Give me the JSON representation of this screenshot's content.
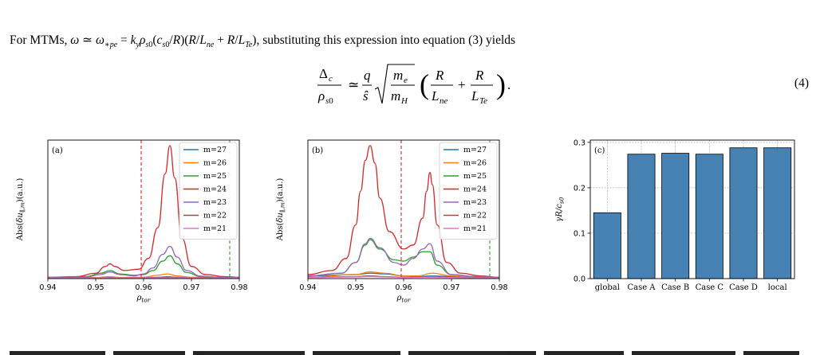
{
  "paragraph": {
    "lead": "For MTMs,",
    "formula": "ω ≃ ω*pe = k_y ρ_s0 (c_s0/R)(R/L_ne + R/L_Te)",
    "trail": ", substituting this expression into equation (3) yields"
  },
  "equation": {
    "number": "(4)"
  },
  "figure": {
    "panel_tags": [
      "(a)",
      "(b)",
      "(c)"
    ]
  },
  "chart_data": [
    {
      "panel": "(a)",
      "type": "line",
      "xlabel": "ρ_tor",
      "ylabel": "Abs(δu_∥,m)(a.u.)",
      "xlim": [
        0.94,
        0.98
      ],
      "xticks": [
        "0.94",
        "0.95",
        "0.96",
        "0.97",
        "0.98"
      ],
      "ylim": [
        0,
        1
      ],
      "yticks": [],
      "legend_position": "upper right",
      "grid": false,
      "vlines": [
        {
          "x": 0.9595,
          "color": "#d62728",
          "style": "dashed"
        },
        {
          "x": 0.978,
          "color": "#2ca02c",
          "style": "dashed"
        }
      ],
      "series": [
        {
          "name": "m=27",
          "color": "#1f77b4",
          "x": [
            0.94,
            0.95,
            0.953,
            0.955,
            0.96,
            0.963,
            0.965,
            0.967,
            0.97,
            0.975,
            0.98
          ],
          "y": [
            0.005,
            0.006,
            0.008,
            0.007,
            0.007,
            0.01,
            0.014,
            0.01,
            0.007,
            0.006,
            0.005
          ]
        },
        {
          "name": "m=26",
          "color": "#ff7f0e",
          "x": [
            0.94,
            0.95,
            0.953,
            0.955,
            0.96,
            0.963,
            0.965,
            0.967,
            0.97,
            0.975,
            0.98
          ],
          "y": [
            0.005,
            0.008,
            0.015,
            0.009,
            0.01,
            0.025,
            0.035,
            0.02,
            0.01,
            0.007,
            0.005
          ]
        },
        {
          "name": "m=25",
          "color": "#2ca02c",
          "x": [
            0.94,
            0.948,
            0.951,
            0.953,
            0.955,
            0.958,
            0.96,
            0.962,
            0.964,
            0.9655,
            0.967,
            0.969,
            0.972,
            0.976,
            0.98
          ],
          "y": [
            0.008,
            0.015,
            0.04,
            0.06,
            0.035,
            0.025,
            0.03,
            0.06,
            0.13,
            0.17,
            0.11,
            0.045,
            0.015,
            0.01,
            0.008
          ]
        },
        {
          "name": "m=24",
          "color": "#d62728",
          "x": [
            0.94,
            0.946,
            0.95,
            0.952,
            0.953,
            0.954,
            0.956,
            0.959,
            0.961,
            0.963,
            0.9645,
            0.9655,
            0.9665,
            0.968,
            0.97,
            0.973,
            0.977,
            0.98
          ],
          "y": [
            0.01,
            0.015,
            0.04,
            0.09,
            0.11,
            0.09,
            0.06,
            0.07,
            0.15,
            0.38,
            0.78,
            0.99,
            0.75,
            0.3,
            0.09,
            0.03,
            0.015,
            0.01
          ]
        },
        {
          "name": "m=23",
          "color": "#9467bd",
          "x": [
            0.94,
            0.948,
            0.951,
            0.953,
            0.955,
            0.958,
            0.96,
            0.962,
            0.964,
            0.9655,
            0.967,
            0.969,
            0.972,
            0.976,
            0.98
          ],
          "y": [
            0.008,
            0.012,
            0.03,
            0.05,
            0.03,
            0.02,
            0.035,
            0.08,
            0.18,
            0.24,
            0.16,
            0.06,
            0.018,
            0.01,
            0.008
          ]
        },
        {
          "name": "m=22",
          "color": "#8c564b",
          "x": [
            0.94,
            0.95,
            0.955,
            0.96,
            0.965,
            0.97,
            0.975,
            0.98
          ],
          "y": [
            0.005,
            0.006,
            0.006,
            0.007,
            0.008,
            0.006,
            0.005,
            0.005
          ]
        },
        {
          "name": "m=21",
          "color": "#e377c2",
          "x": [
            0.94,
            0.95,
            0.955,
            0.96,
            0.965,
            0.97,
            0.975,
            0.98
          ],
          "y": [
            0.004,
            0.005,
            0.005,
            0.005,
            0.006,
            0.005,
            0.004,
            0.004
          ]
        }
      ]
    },
    {
      "panel": "(b)",
      "type": "line",
      "xlabel": "ρ_tor",
      "ylabel": "Abs(δu_∥,m)(a.u.)",
      "xlim": [
        0.94,
        0.98
      ],
      "xticks": [
        "0.94",
        "0.95",
        "0.96",
        "0.97",
        "0.98"
      ],
      "ylim": [
        0,
        1
      ],
      "yticks": [],
      "legend_position": "upper right",
      "grid": false,
      "vlines": [
        {
          "x": 0.9595,
          "color": "#d62728",
          "style": "dashed"
        },
        {
          "x": 0.978,
          "color": "#2ca02c",
          "style": "dashed"
        }
      ],
      "series": [
        {
          "name": "m=27",
          "color": "#1f77b4",
          "x": [
            0.94,
            0.95,
            0.953,
            0.956,
            0.96,
            0.963,
            0.966,
            0.97,
            0.975,
            0.98
          ],
          "y": [
            0.02,
            0.03,
            0.04,
            0.035,
            0.02,
            0.015,
            0.02,
            0.015,
            0.01,
            0.008
          ]
        },
        {
          "name": "m=26",
          "color": "#ff7f0e",
          "x": [
            0.94,
            0.95,
            0.953,
            0.956,
            0.96,
            0.963,
            0.966,
            0.97,
            0.975,
            0.98
          ],
          "y": [
            0.01,
            0.03,
            0.05,
            0.04,
            0.02,
            0.02,
            0.04,
            0.02,
            0.01,
            0.008
          ]
        },
        {
          "name": "m=25",
          "color": "#2ca02c",
          "x": [
            0.94,
            0.947,
            0.95,
            0.952,
            0.953,
            0.955,
            0.958,
            0.96,
            0.962,
            0.964,
            0.9655,
            0.967,
            0.97,
            0.975,
            0.98
          ],
          "y": [
            0.02,
            0.04,
            0.12,
            0.25,
            0.29,
            0.22,
            0.14,
            0.13,
            0.16,
            0.2,
            0.2,
            0.1,
            0.03,
            0.015,
            0.01
          ]
        },
        {
          "name": "m=24",
          "color": "#d62728",
          "x": [
            0.94,
            0.945,
            0.948,
            0.95,
            0.951,
            0.952,
            0.953,
            0.954,
            0.955,
            0.957,
            0.96,
            0.962,
            0.964,
            0.9648,
            0.9655,
            0.966,
            0.967,
            0.969,
            0.972,
            0.976,
            0.98
          ],
          "y": [
            0.03,
            0.06,
            0.15,
            0.4,
            0.65,
            0.88,
            0.99,
            0.86,
            0.6,
            0.35,
            0.22,
            0.25,
            0.45,
            0.65,
            0.79,
            0.7,
            0.4,
            0.12,
            0.04,
            0.02,
            0.01
          ]
        },
        {
          "name": "m=23",
          "color": "#9467bd",
          "x": [
            0.94,
            0.947,
            0.95,
            0.952,
            0.953,
            0.955,
            0.958,
            0.96,
            0.962,
            0.964,
            0.9655,
            0.967,
            0.97,
            0.975,
            0.98
          ],
          "y": [
            0.02,
            0.04,
            0.12,
            0.26,
            0.3,
            0.23,
            0.12,
            0.1,
            0.15,
            0.22,
            0.26,
            0.13,
            0.03,
            0.015,
            0.01
          ]
        },
        {
          "name": "m=22",
          "color": "#8c564b",
          "x": [
            0.94,
            0.95,
            0.953,
            0.956,
            0.96,
            0.965,
            0.97,
            0.975,
            0.98
          ],
          "y": [
            0.01,
            0.015,
            0.02,
            0.015,
            0.01,
            0.012,
            0.01,
            0.008,
            0.006
          ]
        },
        {
          "name": "m=21",
          "color": "#e377c2",
          "x": [
            0.94,
            0.95,
            0.953,
            0.956,
            0.96,
            0.965,
            0.97,
            0.975,
            0.98
          ],
          "y": [
            0.008,
            0.012,
            0.015,
            0.012,
            0.008,
            0.01,
            0.008,
            0.006,
            0.005
          ]
        }
      ]
    },
    {
      "panel": "(c)",
      "type": "bar",
      "categories": [
        "global",
        "Case A",
        "Case B",
        "Case C",
        "Case D",
        "local"
      ],
      "values": [
        0.145,
        0.274,
        0.276,
        0.274,
        0.288,
        0.288
      ],
      "ylabel": "γR/c_s0",
      "ylim": [
        0,
        0.305
      ],
      "yticks": [
        "0.0",
        "0.1",
        "0.2",
        "0.3"
      ],
      "grid": true,
      "bar_color": "#4682b4"
    }
  ]
}
